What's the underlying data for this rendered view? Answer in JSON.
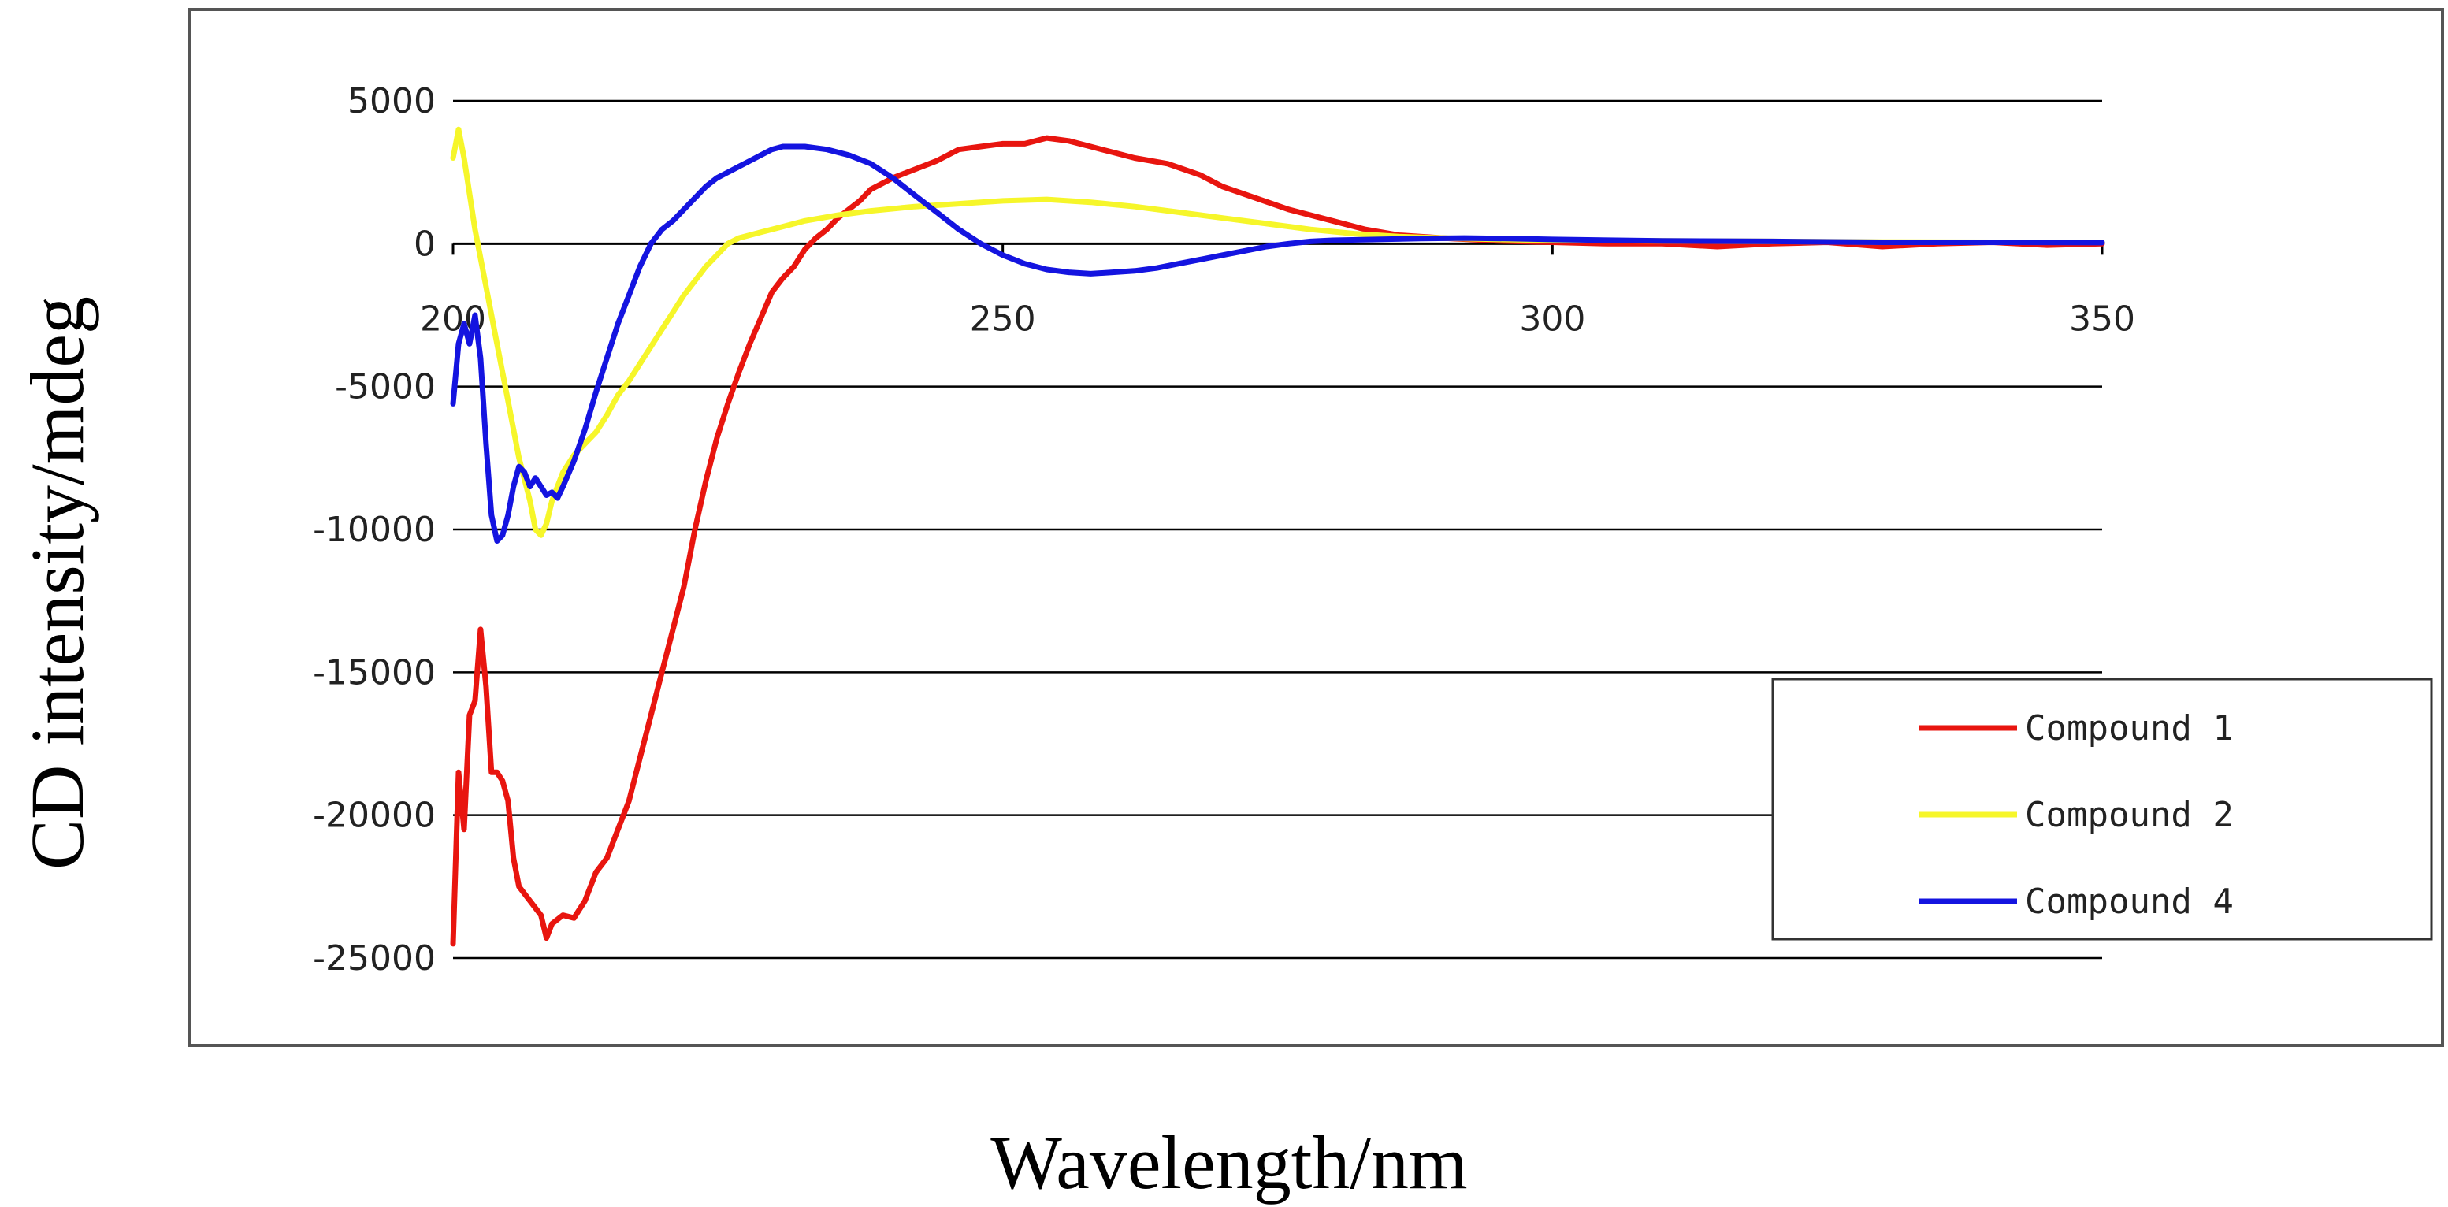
{
  "chart_data": {
    "type": "line",
    "title": "",
    "xlabel": "Wavelength/nm",
    "ylabel": "CD intensity/mdeg",
    "xlim": [
      200,
      350
    ],
    "ylim": [
      -25000,
      5000
    ],
    "x_ticks": [
      200,
      250,
      300,
      350
    ],
    "x_tick_labels": [
      "200",
      "250",
      "300",
      "350"
    ],
    "y_ticks": [
      5000,
      0,
      -5000,
      -10000,
      -15000,
      -20000,
      -25000
    ],
    "y_tick_labels": [
      "5000",
      "0",
      "-5000",
      "-10000",
      "-15000",
      "-20000",
      "-25000"
    ],
    "grid": true,
    "legend_position": "lower-right",
    "series": [
      {
        "name": "Compound 1",
        "color": "#e8150f",
        "points": [
          [
            200,
            -24500
          ],
          [
            200.5,
            -18500
          ],
          [
            201,
            -20500
          ],
          [
            201.5,
            -16500
          ],
          [
            202,
            -16000
          ],
          [
            202.5,
            -13500
          ],
          [
            203,
            -15500
          ],
          [
            203.5,
            -18500
          ],
          [
            204,
            -18500
          ],
          [
            204.5,
            -18800
          ],
          [
            205,
            -19500
          ],
          [
            205.5,
            -21500
          ],
          [
            206,
            -22500
          ],
          [
            207,
            -23000
          ],
          [
            208,
            -23500
          ],
          [
            208.5,
            -24300
          ],
          [
            209,
            -23800
          ],
          [
            210,
            -23500
          ],
          [
            211,
            -23600
          ],
          [
            212,
            -23000
          ],
          [
            213,
            -22000
          ],
          [
            214,
            -21500
          ],
          [
            215,
            -20500
          ],
          [
            216,
            -19500
          ],
          [
            217,
            -18000
          ],
          [
            218,
            -16500
          ],
          [
            219,
            -15000
          ],
          [
            220,
            -13500
          ],
          [
            221,
            -12000
          ],
          [
            222,
            -10000
          ],
          [
            223,
            -8300
          ],
          [
            224,
            -6800
          ],
          [
            225,
            -5600
          ],
          [
            226,
            -4500
          ],
          [
            227,
            -3500
          ],
          [
            228,
            -2600
          ],
          [
            229,
            -1700
          ],
          [
            230,
            -1200
          ],
          [
            231,
            -800
          ],
          [
            232,
            -200
          ],
          [
            233,
            200
          ],
          [
            234,
            500
          ],
          [
            235,
            900
          ],
          [
            236,
            1200
          ],
          [
            237,
            1500
          ],
          [
            238,
            1900
          ],
          [
            240,
            2300
          ],
          [
            242,
            2600
          ],
          [
            244,
            2900
          ],
          [
            246,
            3300
          ],
          [
            248,
            3400
          ],
          [
            250,
            3500
          ],
          [
            252,
            3500
          ],
          [
            254,
            3700
          ],
          [
            256,
            3600
          ],
          [
            258,
            3400
          ],
          [
            260,
            3200
          ],
          [
            262,
            3000
          ],
          [
            265,
            2800
          ],
          [
            268,
            2400
          ],
          [
            270,
            2000
          ],
          [
            273,
            1600
          ],
          [
            276,
            1200
          ],
          [
            280,
            800
          ],
          [
            283,
            500
          ],
          [
            286,
            300
          ],
          [
            290,
            200
          ],
          [
            295,
            100
          ],
          [
            300,
            50
          ],
          [
            305,
            0
          ],
          [
            310,
            0
          ],
          [
            315,
            -100
          ],
          [
            320,
            0
          ],
          [
            325,
            50
          ],
          [
            330,
            -100
          ],
          [
            335,
            0
          ],
          [
            340,
            50
          ],
          [
            345,
            -50
          ],
          [
            350,
            0
          ]
        ]
      },
      {
        "name": "Compound 2",
        "color": "#f6f62a",
        "points": [
          [
            200,
            3000
          ],
          [
            200.5,
            4000
          ],
          [
            201,
            3000
          ],
          [
            202,
            500
          ],
          [
            203,
            -1500
          ],
          [
            204,
            -3500
          ],
          [
            205,
            -5500
          ],
          [
            206,
            -7500
          ],
          [
            207,
            -9000
          ],
          [
            207.5,
            -10000
          ],
          [
            208,
            -10200
          ],
          [
            208.5,
            -9800
          ],
          [
            209,
            -9000
          ],
          [
            210,
            -8000
          ],
          [
            211,
            -7400
          ],
          [
            212,
            -7000
          ],
          [
            213,
            -6600
          ],
          [
            214,
            -6000
          ],
          [
            215,
            -5300
          ],
          [
            216,
            -4800
          ],
          [
            217,
            -4200
          ],
          [
            218,
            -3600
          ],
          [
            219,
            -3000
          ],
          [
            220,
            -2400
          ],
          [
            221,
            -1800
          ],
          [
            222,
            -1300
          ],
          [
            223,
            -800
          ],
          [
            224,
            -400
          ],
          [
            225,
            0
          ],
          [
            226,
            200
          ],
          [
            228,
            400
          ],
          [
            230,
            600
          ],
          [
            232,
            800
          ],
          [
            235,
            1000
          ],
          [
            238,
            1150
          ],
          [
            242,
            1300
          ],
          [
            246,
            1400
          ],
          [
            250,
            1500
          ],
          [
            254,
            1550
          ],
          [
            258,
            1450
          ],
          [
            262,
            1300
          ],
          [
            266,
            1100
          ],
          [
            270,
            900
          ],
          [
            274,
            700
          ],
          [
            278,
            500
          ],
          [
            282,
            350
          ],
          [
            286,
            250
          ],
          [
            290,
            200
          ],
          [
            295,
            150
          ],
          [
            300,
            120
          ],
          [
            310,
            100
          ],
          [
            320,
            80
          ],
          [
            330,
            60
          ],
          [
            340,
            50
          ],
          [
            350,
            50
          ]
        ]
      },
      {
        "name": "Compound 4",
        "color": "#1414e0",
        "points": [
          [
            200,
            -5600
          ],
          [
            200.5,
            -3500
          ],
          [
            201,
            -2800
          ],
          [
            201.5,
            -3500
          ],
          [
            202,
            -2500
          ],
          [
            202.5,
            -4000
          ],
          [
            203,
            -7000
          ],
          [
            203.5,
            -9500
          ],
          [
            204,
            -10400
          ],
          [
            204.5,
            -10200
          ],
          [
            205,
            -9500
          ],
          [
            205.5,
            -8500
          ],
          [
            206,
            -7800
          ],
          [
            206.5,
            -8000
          ],
          [
            207,
            -8500
          ],
          [
            207.5,
            -8200
          ],
          [
            208,
            -8500
          ],
          [
            208.5,
            -8800
          ],
          [
            209,
            -8700
          ],
          [
            209.5,
            -8900
          ],
          [
            210,
            -8500
          ],
          [
            211,
            -7600
          ],
          [
            212,
            -6500
          ],
          [
            213,
            -5200
          ],
          [
            214,
            -4000
          ],
          [
            215,
            -2800
          ],
          [
            216,
            -1800
          ],
          [
            217,
            -800
          ],
          [
            218,
            0
          ],
          [
            219,
            500
          ],
          [
            220,
            800
          ],
          [
            221,
            1200
          ],
          [
            222,
            1600
          ],
          [
            223,
            2000
          ],
          [
            224,
            2300
          ],
          [
            225,
            2500
          ],
          [
            226,
            2700
          ],
          [
            227,
            2900
          ],
          [
            228,
            3100
          ],
          [
            229,
            3300
          ],
          [
            230,
            3400
          ],
          [
            232,
            3400
          ],
          [
            234,
            3300
          ],
          [
            236,
            3100
          ],
          [
            238,
            2800
          ],
          [
            240,
            2300
          ],
          [
            242,
            1700
          ],
          [
            244,
            1100
          ],
          [
            246,
            500
          ],
          [
            248,
            0
          ],
          [
            250,
            -400
          ],
          [
            252,
            -700
          ],
          [
            254,
            -900
          ],
          [
            256,
            -1000
          ],
          [
            258,
            -1050
          ],
          [
            260,
            -1000
          ],
          [
            262,
            -950
          ],
          [
            264,
            -850
          ],
          [
            266,
            -700
          ],
          [
            268,
            -550
          ],
          [
            270,
            -400
          ],
          [
            272,
            -250
          ],
          [
            274,
            -100
          ],
          [
            276,
            0
          ],
          [
            278,
            80
          ],
          [
            280,
            120
          ],
          [
            284,
            150
          ],
          [
            288,
            180
          ],
          [
            292,
            200
          ],
          [
            296,
            180
          ],
          [
            300,
            150
          ],
          [
            310,
            100
          ],
          [
            320,
            80
          ],
          [
            330,
            50
          ],
          [
            340,
            50
          ],
          [
            350,
            40
          ]
        ]
      }
    ]
  }
}
